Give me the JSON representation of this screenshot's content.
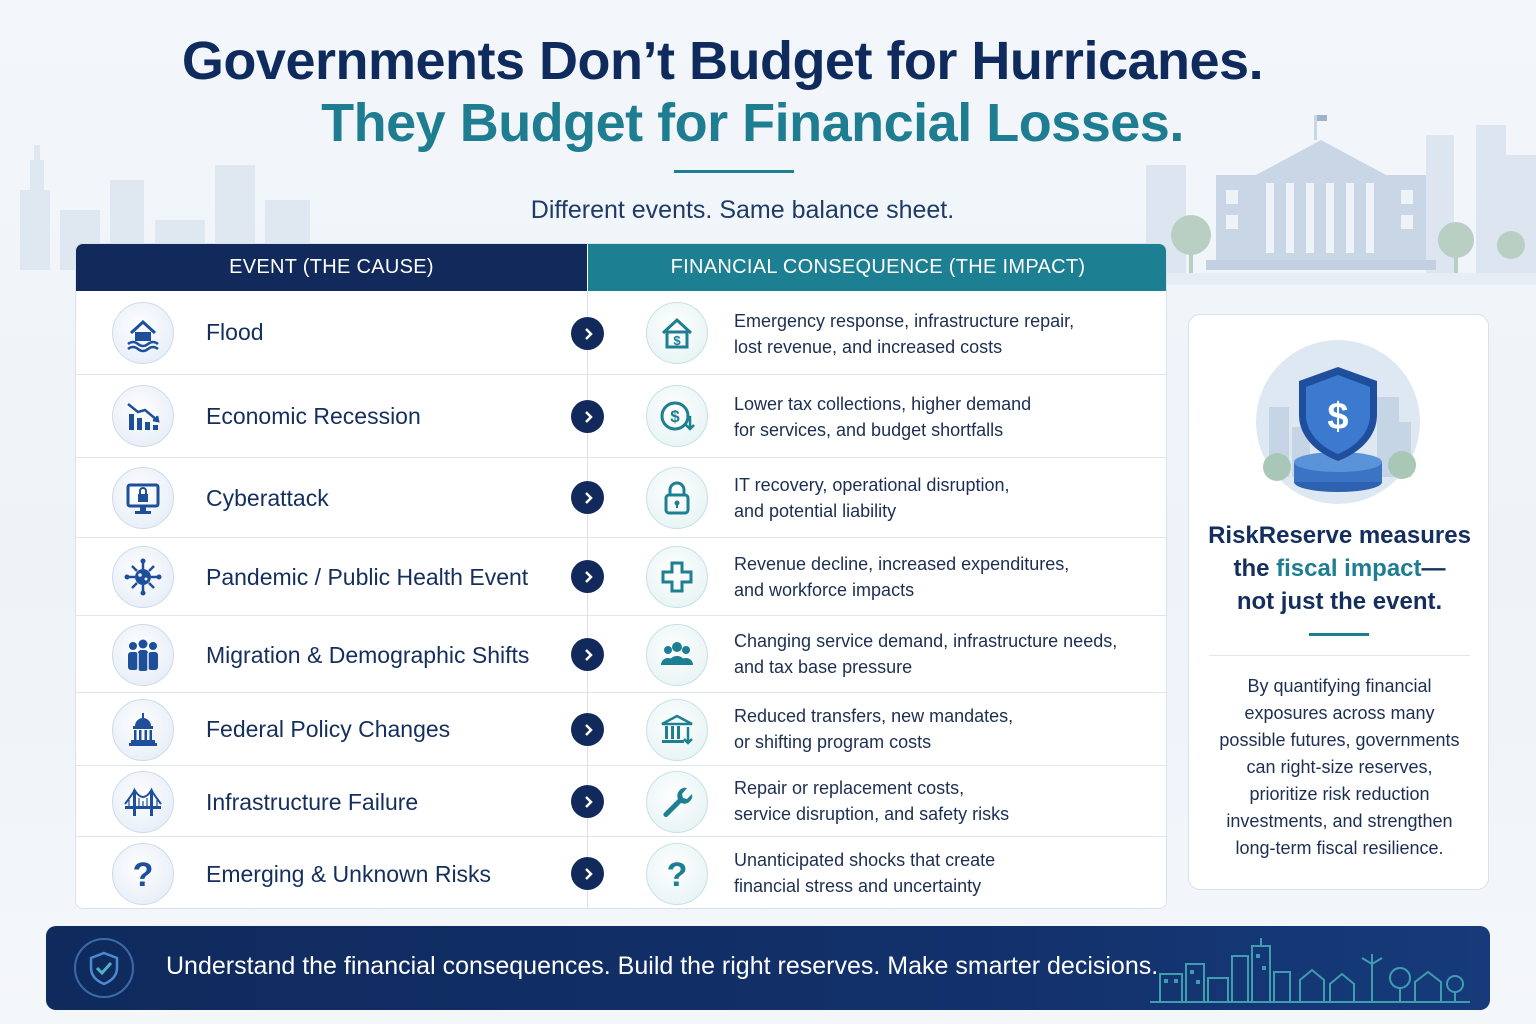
{
  "header": {
    "title_line1": "Governments Don’t Budget for Hurricanes.",
    "title_line2": "They Budget for Financial Losses.",
    "subtitle": "Different events. Same balance sheet."
  },
  "table": {
    "left_header": "EVENT (THE CAUSE)",
    "right_header": "FINANCIAL CONSEQUENCE (THE IMPACT)",
    "rows": [
      {
        "event": "Flood",
        "event_icon": "flood-house-icon",
        "consequence_line1": "Emergency response, infrastructure repair,",
        "consequence_line2": "lost revenue, and increased costs",
        "consequence_icon": "house-dollar-icon"
      },
      {
        "event": "Economic Recession",
        "event_icon": "declining-chart-icon",
        "consequence_line1": "Lower tax collections, higher demand",
        "consequence_line2": "for services, and budget shortfalls",
        "consequence_icon": "dollar-down-icon"
      },
      {
        "event": "Cyberattack",
        "event_icon": "monitor-lock-icon",
        "consequence_line1": "IT recovery, operational disruption,",
        "consequence_line2": "and potential liability",
        "consequence_icon": "padlock-icon"
      },
      {
        "event": "Pandemic / Public Health Event",
        "event_icon": "virus-icon",
        "consequence_line1": "Revenue decline, increased expenditures,",
        "consequence_line2": "and workforce impacts",
        "consequence_icon": "medical-cross-icon"
      },
      {
        "event": "Migration & Demographic Shifts",
        "event_icon": "people-group-icon",
        "consequence_line1": "Changing service demand, infrastructure needs,",
        "consequence_line2": "and tax base pressure",
        "consequence_icon": "people-icon"
      },
      {
        "event": "Federal Policy Changes",
        "event_icon": "capitol-icon",
        "consequence_line1": "Reduced transfers, new mandates,",
        "consequence_line2": "or shifting program costs",
        "consequence_icon": "bank-down-icon"
      },
      {
        "event": "Infrastructure Failure",
        "event_icon": "bridge-icon",
        "consequence_line1": "Repair or replacement costs,",
        "consequence_line2": "service disruption, and safety risks",
        "consequence_icon": "wrench-icon"
      },
      {
        "event": "Emerging & Unknown Risks",
        "event_icon": "question-icon",
        "consequence_line1": "Unanticipated shocks that create",
        "consequence_line2": "financial stress and uncertainty",
        "consequence_icon": "question-icon"
      }
    ]
  },
  "side_panel": {
    "illustration_icon": "shield-dollar-icon",
    "head_line1": "RiskReserve measures",
    "head_line2_pre": "the ",
    "head_line2_highlight": "fiscal impact",
    "head_line2_post": "—",
    "head_line3": "not just the event.",
    "body_lines": [
      "By quantifying financial",
      "exposures across many",
      "possible futures, governments",
      "can right-size reserves,",
      "prioritize risk reduction",
      "investments, and strengthen",
      "long-term fiscal resilience."
    ]
  },
  "banner": {
    "badge_icon": "shield-check-icon",
    "text": "Understand the financial consequences. Build the right reserves. Make smarter decisions."
  },
  "colors": {
    "navy": "#12295b",
    "teal": "#1d7f92",
    "background": "#f3f7fb"
  }
}
